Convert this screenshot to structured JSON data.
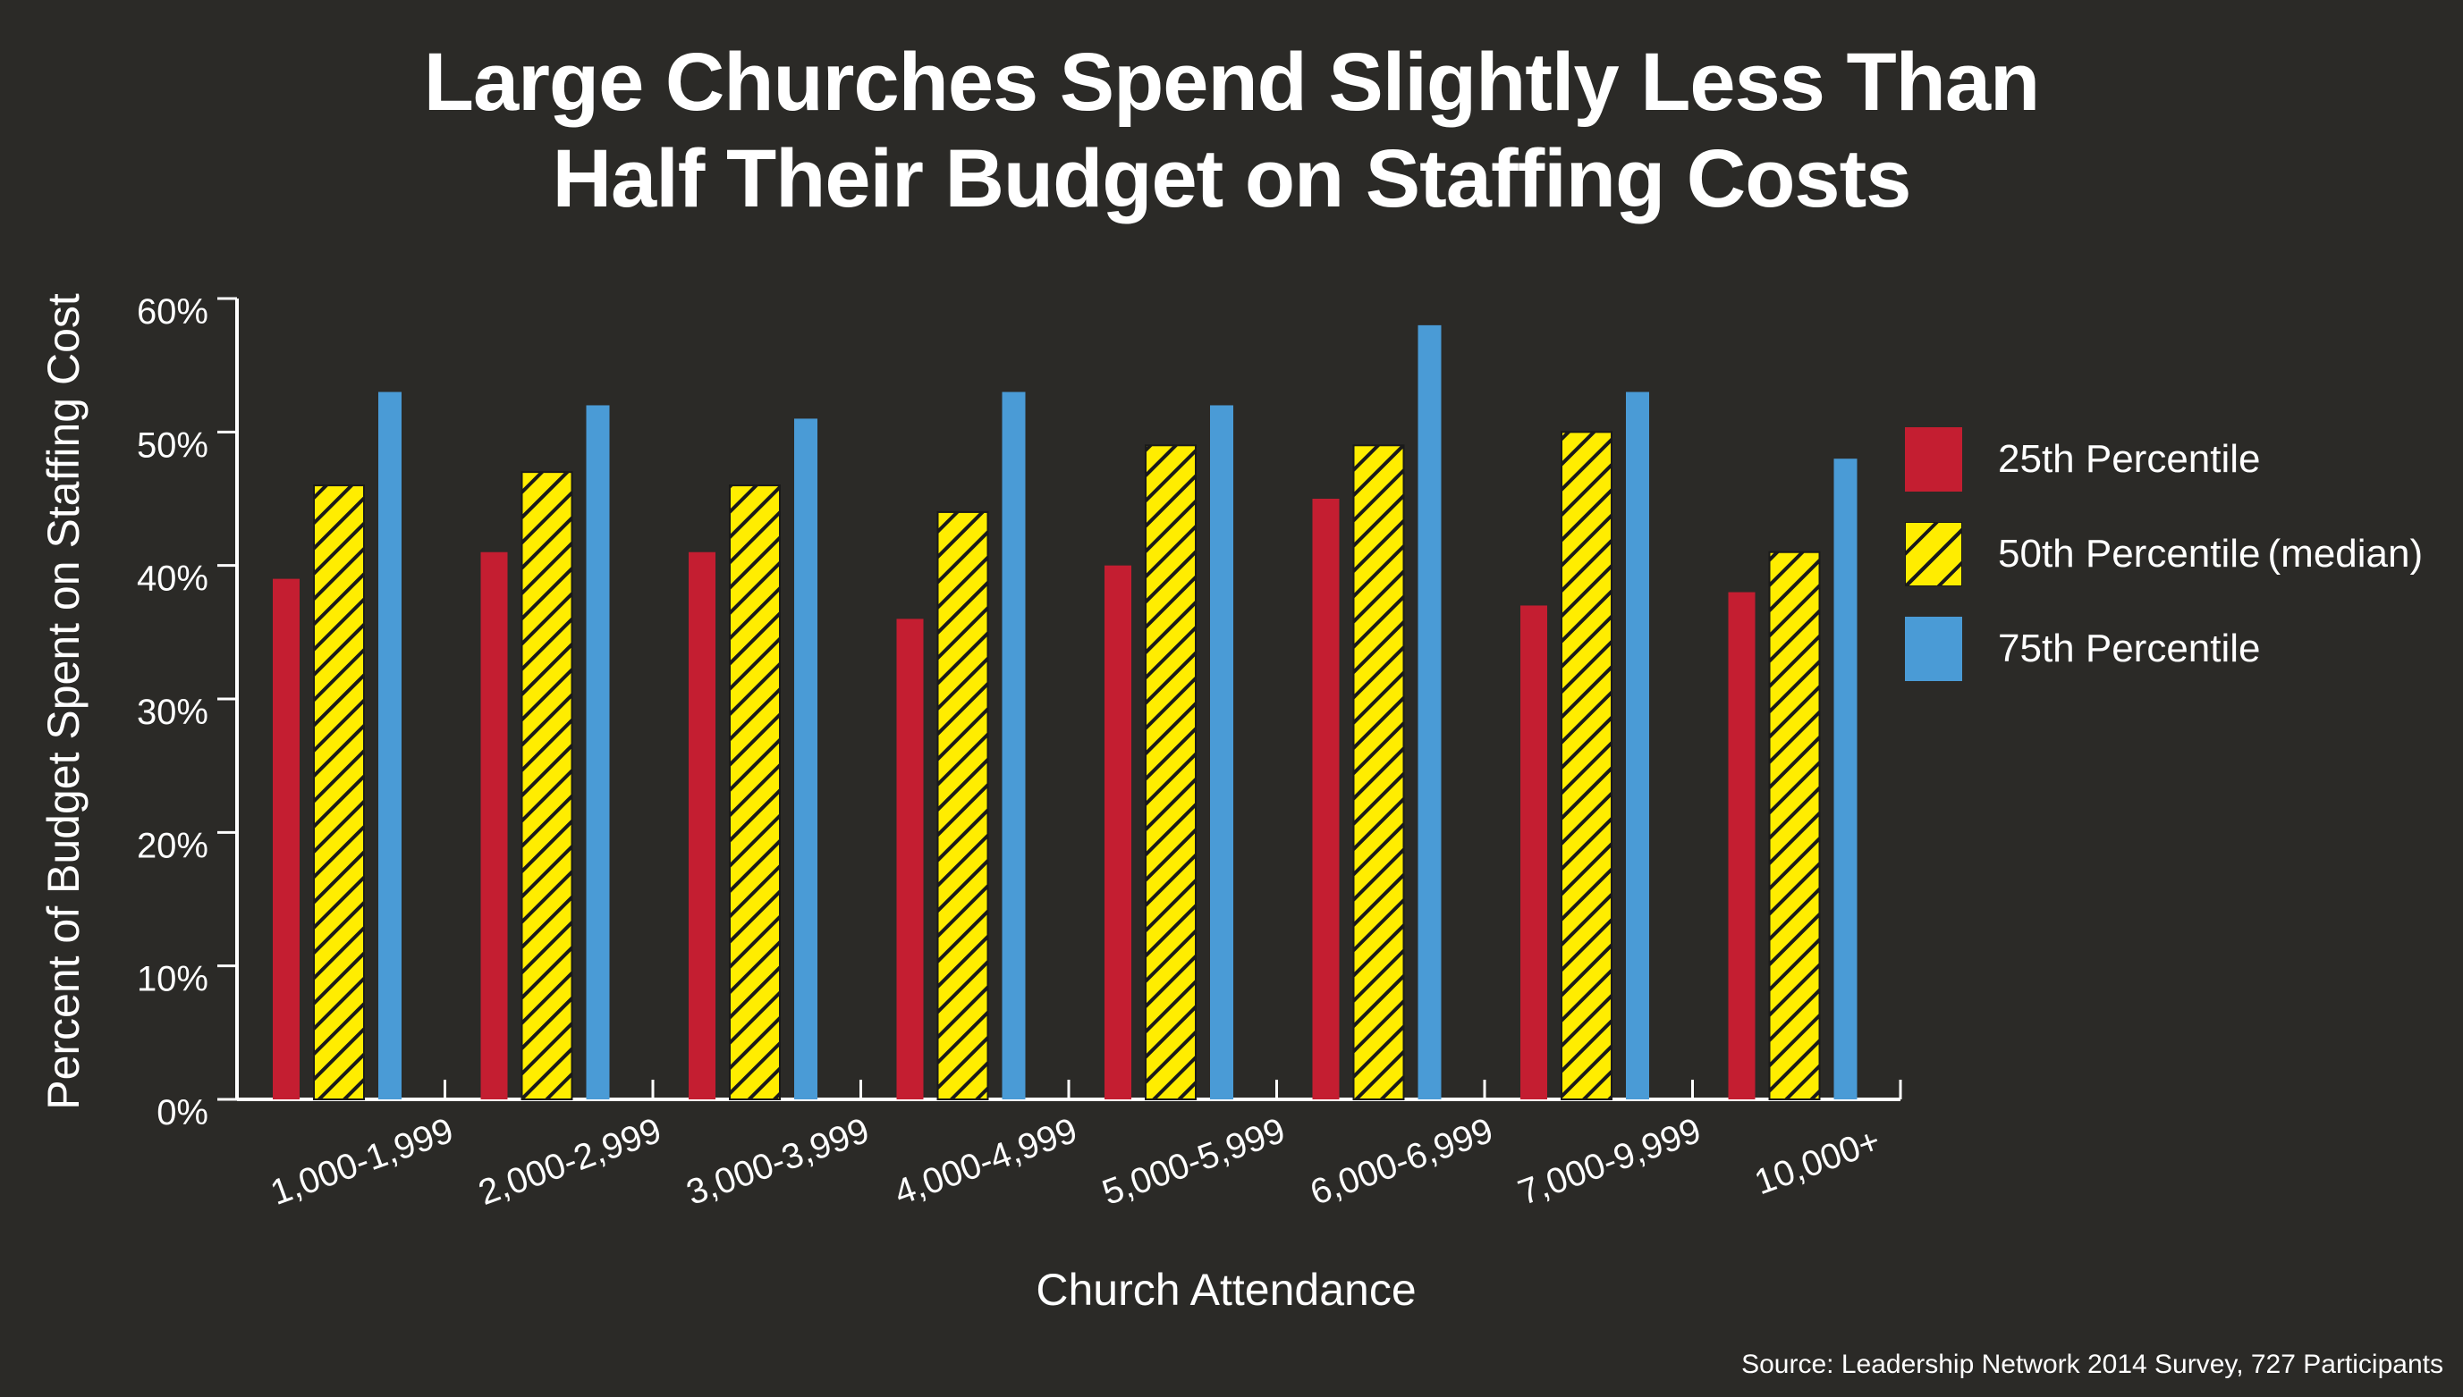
{
  "chart_data": {
    "type": "bar",
    "title": [
      "Large Churches Spend Slightly Less Than",
      "Half Their Budget on Staffing Costs"
    ],
    "xlabel": "Church Attendance",
    "ylabel": "Percent of Budget Spent on Staffing Cost",
    "ylim": [
      0,
      60
    ],
    "yticks": [
      "0%",
      "10%",
      "20%",
      "30%",
      "40%",
      "50%",
      "60%"
    ],
    "categories": [
      "1,000-1,999",
      "2,000-2,999",
      "3,000-3,999",
      "4,000-4,999",
      "5,000-5,999",
      "6,000-6,999",
      "7,000-9,999",
      "10,000+"
    ],
    "series": [
      {
        "name": "25th Percentile",
        "color": "#c41e31",
        "pattern": "solid",
        "values": [
          39,
          41,
          41,
          36,
          40,
          45,
          37,
          38
        ]
      },
      {
        "name": "50th Percentile",
        "name_suffix": "(median)",
        "color": "#ffed00",
        "pattern": "hatched",
        "values": [
          46,
          47,
          46,
          44,
          49,
          49,
          50,
          41
        ]
      },
      {
        "name": "75th Percentile",
        "color": "#4a9bd6",
        "pattern": "solid",
        "values": [
          53,
          52,
          51,
          53,
          52,
          58,
          53,
          48
        ]
      }
    ],
    "legend_position": "right",
    "grid": false,
    "source": "Source:  Leadership Network 2014 Survey, 727 Participants"
  }
}
